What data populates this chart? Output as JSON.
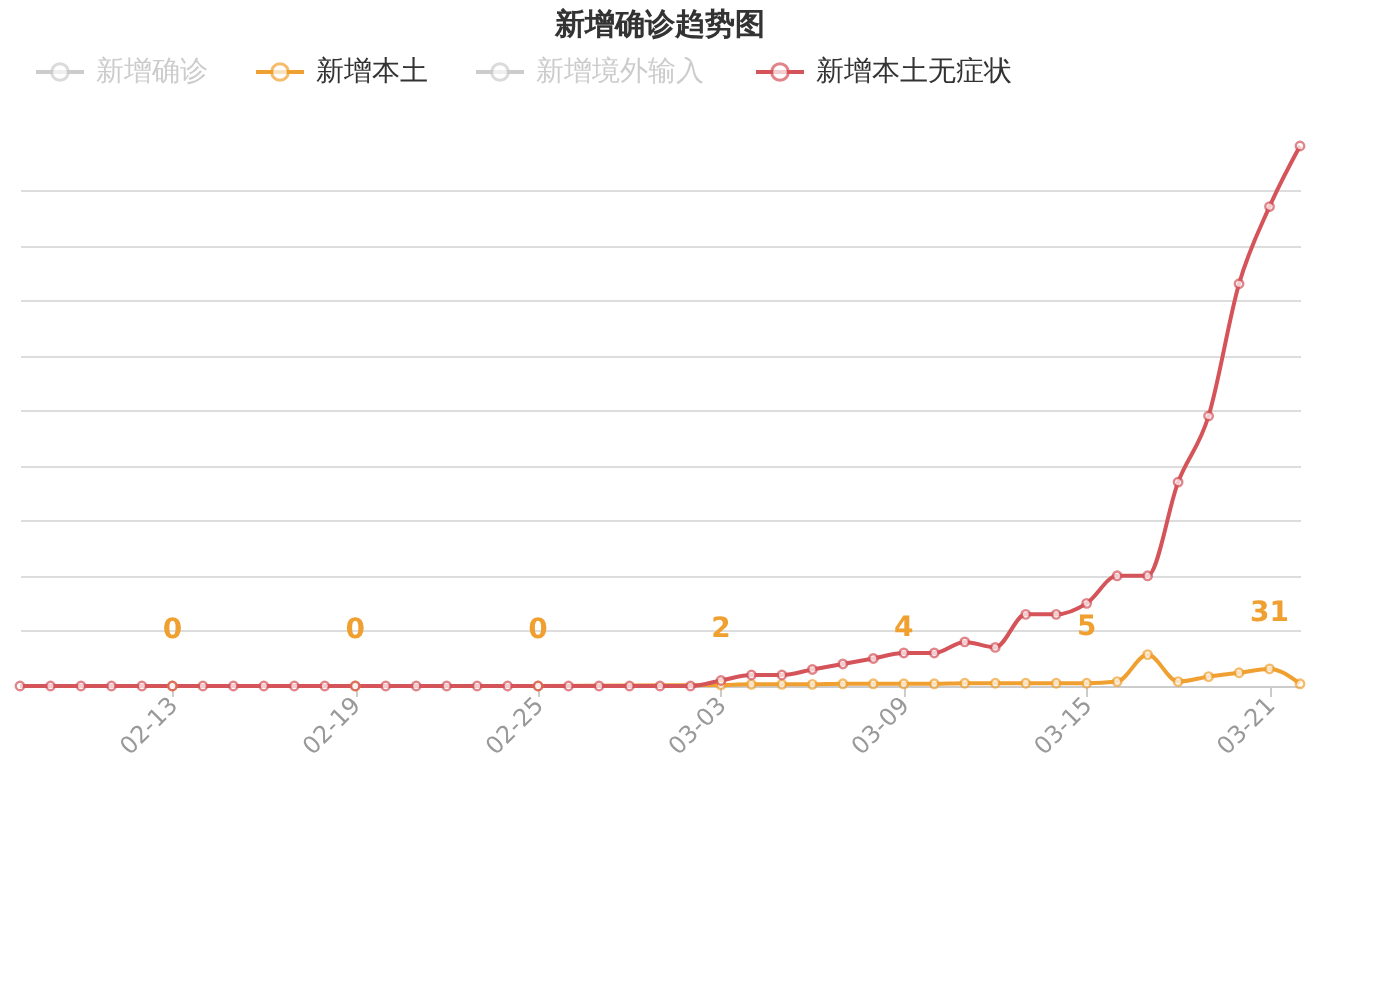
{
  "chart_data": {
    "type": "line",
    "title": "新增确诊趋势图",
    "grid": "y",
    "legend": "top",
    "marker": "circle",
    "tick_labels": "x",
    "x": [
      "--02-08",
      "--02-09",
      "--02-10",
      "--02-11",
      "--02-12",
      "--02-13",
      "--02-14",
      "--02-15",
      "--02-16",
      "--02-17",
      "--02-18",
      "--02-19",
      "--02-20",
      "--02-21",
      "--02-22",
      "--02-23",
      "--02-24",
      "--02-25",
      "--02-26",
      "--02-27",
      "--02-28",
      "--03-01",
      "--03-02",
      "--03-03",
      "--03-04",
      "--03-05",
      "--03-06",
      "--03-07",
      "--03-08",
      "--03-09",
      "--03-10",
      "--03-11",
      "--03-12",
      "--03-13",
      "--03-14",
      "--03-15",
      "--03-16",
      "--03-17",
      "--03-18",
      "--03-19",
      "--03-20",
      "--03-21",
      "--03-22"
    ],
    "xlim": [
      "--02-08",
      "--03-22"
    ],
    "xticks": [
      {
        "value": "--02-13",
        "label": "02-13"
      },
      {
        "value": "--02-19",
        "label": "02-19"
      },
      {
        "value": "--02-25",
        "label": "02-25"
      },
      {
        "value": "--03-03",
        "label": "03-03"
      },
      {
        "value": "--03-09",
        "label": "03-09"
      },
      {
        "value": "--03-15",
        "label": "03-15"
      },
      {
        "value": "--03-21",
        "label": "03-21"
      }
    ],
    "series": [
      {
        "name": "新增确诊",
        "color": "#cccccc",
        "values": [
          null,
          null,
          null,
          null,
          null,
          null,
          null,
          null,
          null,
          null,
          null,
          null,
          null,
          null,
          null,
          null,
          null,
          null,
          null,
          null,
          null,
          null,
          null,
          null,
          null,
          null,
          null,
          null,
          null,
          null,
          null,
          null,
          null,
          null,
          null,
          null,
          null,
          null,
          null,
          null,
          null,
          null,
          null
        ]
      },
      {
        "name": "新增本土",
        "color": "#f0a030",
        "values": [
          null,
          null,
          null,
          null,
          null,
          0,
          null,
          null,
          null,
          null,
          null,
          0,
          null,
          null,
          null,
          null,
          null,
          0,
          null,
          null,
          null,
          null,
          null,
          2,
          3,
          3,
          3,
          4,
          4,
          4,
          4,
          5,
          5,
          5,
          5,
          5,
          8,
          57,
          8,
          17,
          24,
          31,
          4
        ],
        "value_labels": [
          null,
          null,
          null,
          null,
          null,
          "0",
          null,
          null,
          null,
          null,
          null,
          "0",
          null,
          null,
          null,
          null,
          null,
          "0",
          null,
          null,
          null,
          null,
          null,
          "2",
          null,
          null,
          null,
          null,
          null,
          "4",
          null,
          null,
          null,
          null,
          null,
          "5",
          null,
          null,
          null,
          null,
          null,
          "31",
          null
        ]
      },
      {
        "name": "新增境外输入",
        "color": "#cccccc",
        "values": [
          null,
          null,
          null,
          null,
          null,
          null,
          null,
          null,
          null,
          null,
          null,
          null,
          null,
          null,
          null,
          null,
          null,
          null,
          null,
          null,
          null,
          null,
          null,
          null,
          null,
          null,
          null,
          null,
          null,
          null,
          null,
          null,
          null,
          null,
          null,
          null,
          null,
          null,
          null,
          null,
          null,
          null,
          null
        ]
      },
      {
        "name": "新增本土无症状",
        "color": "#d4545a",
        "values": [
          0,
          0,
          0,
          0,
          0,
          0,
          0,
          0,
          0,
          0,
          0,
          0,
          0,
          0,
          0,
          0,
          0,
          0,
          0,
          0,
          0,
          0,
          0,
          10,
          20,
          20,
          30,
          40,
          50,
          60,
          60,
          80,
          70,
          130,
          130,
          150,
          200,
          200,
          370,
          490,
          730,
          870,
          980
        ]
      }
    ]
  }
}
